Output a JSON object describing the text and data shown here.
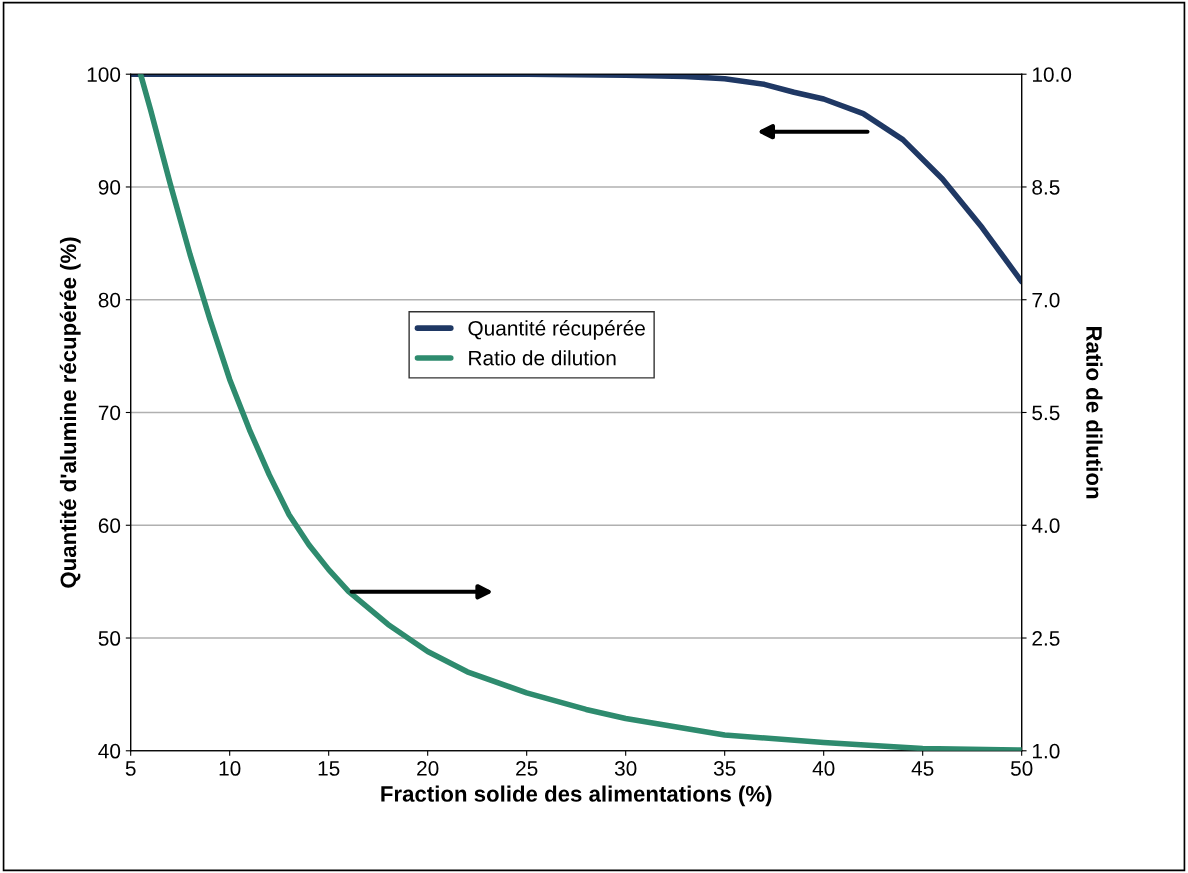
{
  "chart_data": {
    "type": "line",
    "xlabel": "Fraction solide des alimentations (%)",
    "ylabel": "Quantité d'alumine récupérée (%)",
    "y2label": "Ratio de dilution",
    "xlim": [
      5,
      50
    ],
    "xticks": [
      5,
      10,
      15,
      20,
      25,
      30,
      35,
      40,
      45,
      50
    ],
    "ylim": [
      40,
      100
    ],
    "yticks": [
      40,
      50,
      60,
      70,
      80,
      90,
      100
    ],
    "y2lim": [
      1,
      10
    ],
    "y2ticks": [
      {
        "value": 1,
        "label": "1.0"
      },
      {
        "value": 2.5,
        "label": "2.5"
      },
      {
        "value": 4,
        "label": "4.0"
      },
      {
        "value": 5.5,
        "label": "5.5"
      },
      {
        "value": 7,
        "label": "7.0"
      },
      {
        "value": 8.5,
        "label": "8.5"
      },
      {
        "value": 10,
        "label": "10.0"
      }
    ],
    "grid": "y",
    "legend": "center",
    "marker": "none",
    "line_style": "solid",
    "series": [
      {
        "name": "Quantité récupérée",
        "color": "#1f3864",
        "x": [
          5,
          10,
          15,
          20,
          25,
          30,
          33,
          35,
          37,
          38.5,
          40,
          42,
          44,
          46,
          48,
          50
        ],
        "values": [
          100,
          100,
          100,
          100,
          100,
          99.9,
          99.8,
          99.6,
          99.1,
          98.4,
          97.8,
          96.5,
          94.2,
          90.7,
          86.4,
          81.6
        ]
      },
      {
        "name": "Ratio de dilution",
        "color": "#2e8b6e",
        "axis": "y2",
        "x": [
          5.5,
          6,
          7,
          8,
          9,
          10,
          11,
          12,
          13,
          14,
          15,
          16,
          18,
          20,
          22,
          25,
          28,
          30,
          35,
          40,
          45,
          50
        ],
        "values": [
          10,
          9.53,
          8.54,
          7.6,
          6.74,
          5.94,
          5.27,
          4.67,
          4.14,
          3.74,
          3.41,
          3.12,
          2.68,
          2.32,
          2.05,
          1.77,
          1.55,
          1.43,
          1.21,
          1.11,
          1.03,
          1.01
        ]
      }
    ]
  }
}
